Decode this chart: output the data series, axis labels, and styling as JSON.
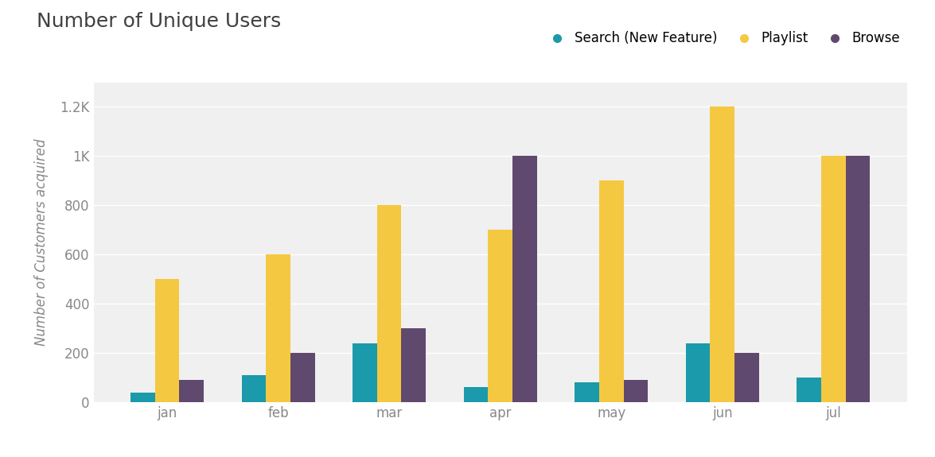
{
  "title": "Number of Unique Users",
  "ylabel": "Number of Customers acquired",
  "categories": [
    "jan",
    "feb",
    "mar",
    "apr",
    "may",
    "jun",
    "jul"
  ],
  "series": [
    {
      "name": "Search (New Feature)",
      "color": "#1a9aaa",
      "values": [
        40,
        110,
        240,
        60,
        80,
        240,
        100
      ]
    },
    {
      "name": "Playlist",
      "color": "#f5c842",
      "values": [
        500,
        600,
        800,
        700,
        900,
        1200,
        1000
      ]
    },
    {
      "name": "Browse",
      "color": "#60496e",
      "values": [
        90,
        200,
        300,
        1000,
        90,
        200,
        1000
      ]
    }
  ],
  "ylim": [
    0,
    1300
  ],
  "yticks": [
    0,
    200,
    400,
    600,
    800,
    1000,
    1200
  ],
  "ytick_labels": [
    "0",
    "200",
    "400",
    "600",
    "800",
    "1K",
    "1.2K"
  ],
  "figure_bg": "#ffffff",
  "axes_bg": "#f0f0f0",
  "grid_color": "#ffffff",
  "title_fontsize": 18,
  "axis_label_fontsize": 12,
  "tick_fontsize": 12,
  "legend_fontsize": 12,
  "bar_width": 0.22,
  "legend_marker_size": 9,
  "title_color": "#404040",
  "tick_color": "#888888",
  "ylabel_color": "#888888"
}
